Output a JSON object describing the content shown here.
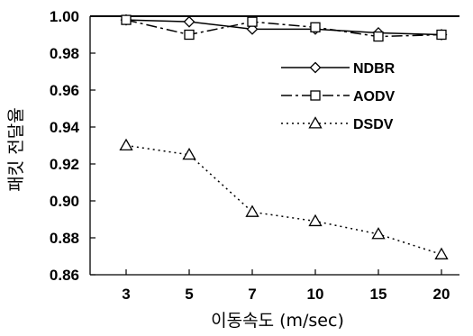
{
  "chart_data": {
    "type": "line",
    "title": "",
    "xlabel": "이동속도 (m/sec)",
    "ylabel": "패킷 전달율",
    "categories": [
      "3",
      "5",
      "7",
      "10",
      "15",
      "20"
    ],
    "ylim": [
      0.86,
      1.0
    ],
    "yticks": [
      "1.00",
      "0.98",
      "0.96",
      "0.94",
      "0.92",
      "0.90",
      "0.88",
      "0.86"
    ],
    "grid": false,
    "legend_position": "upper-right",
    "series": [
      {
        "name": "NDBR",
        "marker": "diamond",
        "dash": "solid",
        "values": [
          0.998,
          0.997,
          0.993,
          0.993,
          0.991,
          0.99
        ]
      },
      {
        "name": "AODV",
        "marker": "square",
        "dash": "dash-dot",
        "values": [
          0.998,
          0.99,
          0.997,
          0.994,
          0.989,
          0.99
        ]
      },
      {
        "name": "DSDV",
        "marker": "triangle",
        "dash": "dotted",
        "values": [
          0.93,
          0.925,
          0.894,
          0.889,
          0.882,
          0.871
        ]
      }
    ]
  }
}
